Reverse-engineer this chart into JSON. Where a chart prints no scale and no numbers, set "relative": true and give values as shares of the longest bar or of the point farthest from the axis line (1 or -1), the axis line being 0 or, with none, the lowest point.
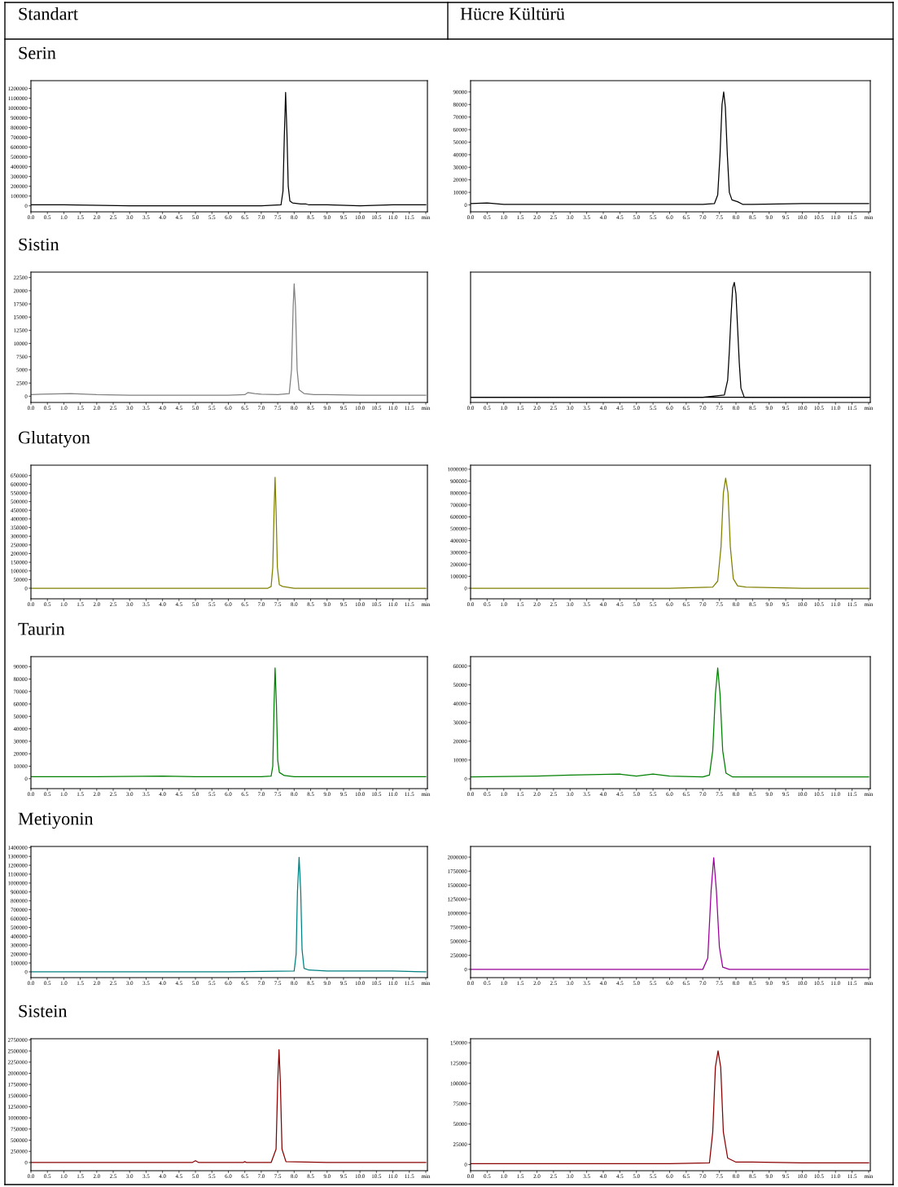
{
  "chart_data": [
    {
      "type": "line",
      "title": "Serin",
      "annotations": [
        "Standart"
      ],
      "xlim": [
        0,
        12.05
      ],
      "ylim": [
        -61000,
        1280000
      ],
      "xticks": [
        {
          "value": 0,
          "label": "0.0"
        },
        0.5,
        {
          "value": 1,
          "label": "1.0"
        },
        1.5,
        {
          "value": 2,
          "label": "2.0"
        },
        2.5,
        {
          "value": 3,
          "label": "3.0"
        },
        3.5,
        {
          "value": 4,
          "label": "4.0"
        },
        4.5,
        {
          "value": 5,
          "label": "5.0"
        },
        5.5,
        {
          "value": 6,
          "label": "6.0"
        },
        6.5,
        {
          "value": 7,
          "label": "7.0"
        },
        7.5,
        {
          "value": 8,
          "label": "8.0"
        },
        8.5,
        {
          "value": 9,
          "label": "9.0"
        },
        9.5,
        {
          "value": 10,
          "label": "10.0"
        },
        10.5,
        {
          "value": 11,
          "label": "11.0"
        },
        11.5,
        {
          "value": 12,
          "label": "min"
        }
      ],
      "yticks": [
        0,
        100000,
        200000,
        300000,
        400000,
        500000,
        600000,
        700000,
        800000,
        900000,
        1000000,
        1100000,
        1200000
      ],
      "grid": false,
      "series": [
        {
          "color": "#000000",
          "x": [
            0,
            0.25,
            1,
            3,
            5,
            7,
            7.6,
            7.66,
            7.7,
            7.74,
            7.78,
            7.82,
            7.87,
            7.95,
            8.2,
            8.35,
            8.45,
            9,
            10,
            11,
            12
          ],
          "values": [
            10000,
            10000,
            10000,
            0,
            0,
            0,
            10000,
            150000,
            700000,
            1160000,
            750000,
            200000,
            50000,
            30000,
            20000,
            20000,
            10000,
            10000,
            0,
            10000,
            10000
          ]
        }
      ]
    },
    {
      "type": "line",
      "annotations": [
        "Hücre Kültürü"
      ],
      "xlim": [
        0,
        12.05
      ],
      "ylim": [
        -5500,
        99000
      ],
      "xticks": [
        {
          "value": 0,
          "label": "0.0"
        },
        0.5,
        {
          "value": 1,
          "label": "1.0"
        },
        1.5,
        {
          "value": 2,
          "label": "2.0"
        },
        2.5,
        {
          "value": 3,
          "label": "3.0"
        },
        3.5,
        {
          "value": 4,
          "label": "4.0"
        },
        4.5,
        {
          "value": 5,
          "label": "5.0"
        },
        5.5,
        {
          "value": 6,
          "label": "6.0"
        },
        6.5,
        {
          "value": 7,
          "label": "7.0"
        },
        7.5,
        {
          "value": 8,
          "label": "8.0"
        },
        8.5,
        {
          "value": 9,
          "label": "9.0"
        },
        9.5,
        {
          "value": 10,
          "label": "10.0"
        },
        10.5,
        {
          "value": 11,
          "label": "11.0"
        },
        11.5,
        {
          "value": 12,
          "label": "min"
        }
      ],
      "yticks": [
        0,
        10000,
        20000,
        30000,
        40000,
        50000,
        60000,
        70000,
        80000,
        90000
      ],
      "grid": false,
      "series": [
        {
          "color": "#000000",
          "x": [
            0,
            0.5,
            1,
            3,
            5,
            7,
            7.35,
            7.45,
            7.52,
            7.58,
            7.63,
            7.68,
            7.74,
            7.8,
            7.88,
            8.05,
            8.2,
            8.5,
            10,
            10.5,
            12
          ],
          "values": [
            1000,
            1500,
            500,
            500,
            500,
            500,
            1000,
            8000,
            40000,
            80000,
            90000,
            78000,
            40000,
            10000,
            4000,
            2500,
            500,
            500,
            1000,
            1000,
            1000
          ]
        }
      ]
    },
    {
      "type": "line",
      "title": "Sistin",
      "xlim": [
        0,
        12.05
      ],
      "ylim": [
        -1180,
        23530
      ],
      "xticks": [
        {
          "value": 0,
          "label": "0.0"
        },
        0.5,
        {
          "value": 1,
          "label": "1.0"
        },
        1.5,
        {
          "value": 2,
          "label": "2.0"
        },
        2.5,
        {
          "value": 3,
          "label": "3.0"
        },
        3.5,
        {
          "value": 4,
          "label": "4.0"
        },
        4.5,
        {
          "value": 5,
          "label": "5.0"
        },
        5.5,
        {
          "value": 6,
          "label": "6.0"
        },
        6.5,
        {
          "value": 7,
          "label": "7.0"
        },
        7.5,
        {
          "value": 8,
          "label": "8.0"
        },
        8.5,
        {
          "value": 9,
          "label": "9.0"
        },
        9.5,
        {
          "value": 10,
          "label": "10.0"
        },
        10.5,
        {
          "value": 11,
          "label": "11.0"
        },
        11.5,
        {
          "value": 12,
          "label": "min"
        }
      ],
      "yticks": [
        0,
        2500,
        5000,
        7500,
        10000,
        12500,
        15000,
        17500,
        20000,
        22500
      ],
      "grid": false,
      "series": [
        {
          "color": "#808080",
          "x": [
            0,
            0.3,
            1.2,
            2,
            3,
            4,
            5,
            6,
            6.5,
            6.6,
            6.8,
            7,
            7.5,
            7.85,
            7.92,
            7.97,
            8.0,
            8.04,
            8.09,
            8.15,
            8.3,
            8.6,
            9,
            10,
            11,
            12
          ],
          "values": [
            300,
            400,
            500,
            300,
            200,
            200,
            200,
            200,
            300,
            700,
            500,
            400,
            300,
            500,
            5000,
            17000,
            21300,
            17000,
            5000,
            1200,
            500,
            300,
            300,
            200,
            200,
            200
          ]
        }
      ]
    },
    {
      "type": "line",
      "relative": true,
      "xlim": [
        0,
        12.05
      ],
      "xticks": [
        {
          "value": 0,
          "label": "0.0"
        },
        0.5,
        {
          "value": 1,
          "label": "1.0"
        },
        1.5,
        {
          "value": 2,
          "label": "2.0"
        },
        2.5,
        {
          "value": 3,
          "label": "3.0"
        },
        3.5,
        {
          "value": 4,
          "label": "4.0"
        },
        4.5,
        {
          "value": 5,
          "label": "5.0"
        },
        5.5,
        {
          "value": 6,
          "label": "6.0"
        },
        6.5,
        {
          "value": 7,
          "label": "7.0"
        },
        7.5,
        {
          "value": 8,
          "label": "8.0"
        },
        8.5,
        {
          "value": 9,
          "label": "9.0"
        },
        9.5,
        {
          "value": 10,
          "label": "10.0"
        },
        10.5,
        {
          "value": 11,
          "label": "11.0"
        },
        11.5,
        {
          "value": 12,
          "label": "min"
        }
      ],
      "grid": false,
      "series": [
        {
          "color": "#000000",
          "x": [
            0,
            3,
            7,
            7.65,
            7.75,
            7.8,
            7.85,
            7.9,
            7.95,
            8.0,
            8.05,
            8.1,
            8.15,
            8.25,
            12
          ],
          "values": [
            0,
            0,
            0,
            0.02,
            0.15,
            0.4,
            0.7,
            0.95,
            1,
            0.9,
            0.6,
            0.3,
            0.08,
            0,
            0
          ]
        }
      ]
    },
    {
      "type": "line",
      "title": "Glutatyon",
      "xlim": [
        0,
        12.05
      ],
      "ylim": [
        -61000,
        710000
      ],
      "xticks": [
        {
          "value": 0,
          "label": "0.0"
        },
        0.5,
        {
          "value": 1,
          "label": "1.0"
        },
        1.5,
        {
          "value": 2,
          "label": "2.0"
        },
        2.5,
        {
          "value": 3,
          "label": "3.0"
        },
        3.5,
        {
          "value": 4,
          "label": "4.0"
        },
        4.5,
        {
          "value": 5,
          "label": "5.0"
        },
        5.5,
        {
          "value": 6,
          "label": "6.0"
        },
        6.5,
        {
          "value": 7,
          "label": "7.0"
        },
        7.5,
        {
          "value": 8,
          "label": "8.0"
        },
        8.5,
        {
          "value": 9,
          "label": "9.0"
        },
        9.5,
        {
          "value": 10,
          "label": "10.0"
        },
        10.5,
        {
          "value": 11,
          "label": "11.0"
        },
        11.5,
        {
          "value": 12,
          "label": "min"
        }
      ],
      "yticks": [
        0,
        50000,
        100000,
        150000,
        200000,
        250000,
        300000,
        350000,
        400000,
        450000,
        500000,
        550000,
        600000,
        650000
      ],
      "grid": false,
      "series": [
        {
          "color": "#808000",
          "x": [
            0,
            3,
            6,
            7.2,
            7.3,
            7.35,
            7.39,
            7.42,
            7.45,
            7.49,
            7.55,
            7.65,
            8,
            10,
            12
          ],
          "values": [
            0,
            0,
            0,
            0,
            10000,
            120000,
            450000,
            640000,
            450000,
            120000,
            20000,
            10000,
            0,
            0,
            0
          ]
        }
      ]
    },
    {
      "type": "line",
      "xlim": [
        0,
        12.05
      ],
      "ylim": [
        -89000,
        1034000
      ],
      "xticks": [
        {
          "value": 0,
          "label": "0.0"
        },
        0.5,
        {
          "value": 1,
          "label": "1.0"
        },
        1.5,
        {
          "value": 2,
          "label": "2.0"
        },
        2.5,
        {
          "value": 3,
          "label": "3.0"
        },
        3.5,
        {
          "value": 4,
          "label": "4.0"
        },
        4.5,
        {
          "value": 5,
          "label": "5.0"
        },
        5.5,
        {
          "value": 6,
          "label": "6.0"
        },
        6.5,
        {
          "value": 7,
          "label": "7.0"
        },
        7.5,
        {
          "value": 8,
          "label": "8.0"
        },
        8.5,
        {
          "value": 9,
          "label": "9.0"
        },
        9.5,
        {
          "value": 10,
          "label": "10.0"
        },
        10.5,
        {
          "value": 11,
          "label": "11.0"
        },
        11.5,
        {
          "value": 12,
          "label": "min"
        }
      ],
      "yticks": [
        0,
        100000,
        200000,
        300000,
        400000,
        500000,
        600000,
        700000,
        800000,
        900000,
        1000000
      ],
      "grid": false,
      "series": [
        {
          "color": "#808000",
          "x": [
            0,
            3,
            6,
            7.3,
            7.45,
            7.55,
            7.62,
            7.69,
            7.76,
            7.83,
            7.92,
            8.05,
            8.3,
            10,
            12
          ],
          "values": [
            0,
            0,
            0,
            10000,
            60000,
            350000,
            800000,
            925000,
            800000,
            350000,
            80000,
            20000,
            10000,
            0,
            0
          ]
        }
      ]
    },
    {
      "type": "line",
      "title": "Taurin",
      "xlim": [
        0,
        12.05
      ],
      "ylim": [
        -8000,
        98000
      ],
      "xticks": [
        {
          "value": 0,
          "label": "0.0"
        },
        0.5,
        {
          "value": 1,
          "label": "1.0"
        },
        1.5,
        {
          "value": 2,
          "label": "2.0"
        },
        2.5,
        {
          "value": 3,
          "label": "3.0"
        },
        3.5,
        {
          "value": 4,
          "label": "4.0"
        },
        4.5,
        {
          "value": 5,
          "label": "5.0"
        },
        5.5,
        {
          "value": 6,
          "label": "6.0"
        },
        6.5,
        {
          "value": 7,
          "label": "7.0"
        },
        7.5,
        {
          "value": 8,
          "label": "8.0"
        },
        8.5,
        {
          "value": 9,
          "label": "9.0"
        },
        9.5,
        {
          "value": 10,
          "label": "10.0"
        },
        10.5,
        {
          "value": 11,
          "label": "11.0"
        },
        11.5,
        {
          "value": 12,
          "label": "min"
        }
      ],
      "yticks": [
        0,
        10000,
        20000,
        30000,
        40000,
        50000,
        60000,
        70000,
        80000,
        90000
      ],
      "grid": false,
      "series": [
        {
          "color": "#008000",
          "x": [
            0,
            2,
            4,
            5,
            7,
            7.3,
            7.35,
            7.39,
            7.42,
            7.46,
            7.5,
            7.55,
            7.7,
            8,
            10,
            12
          ],
          "values": [
            1500,
            1500,
            2000,
            1500,
            1500,
            2000,
            10000,
            60000,
            89000,
            60000,
            15000,
            5000,
            2500,
            1500,
            1500,
            1500
          ]
        }
      ]
    },
    {
      "type": "line",
      "xlim": [
        0,
        12.05
      ],
      "ylim": [
        -5200,
        65000
      ],
      "xticks": [
        {
          "value": 0,
          "label": "0.0"
        },
        0.5,
        {
          "value": 1,
          "label": "1.0"
        },
        1.5,
        {
          "value": 2,
          "label": "2.0"
        },
        2.5,
        {
          "value": 3,
          "label": "3.0"
        },
        3.5,
        {
          "value": 4,
          "label": "4.0"
        },
        4.5,
        {
          "value": 5,
          "label": "5.0"
        },
        5.5,
        {
          "value": 6,
          "label": "6.0"
        },
        6.5,
        {
          "value": 7,
          "label": "7.0"
        },
        7.5,
        {
          "value": 8,
          "label": "8.0"
        },
        8.5,
        {
          "value": 9,
          "label": "9.0"
        },
        9.5,
        {
          "value": 10,
          "label": "10.0"
        },
        10.5,
        {
          "value": 11,
          "label": "11.0"
        },
        11.5,
        {
          "value": 12,
          "label": "min"
        }
      ],
      "yticks": [
        0,
        10000,
        20000,
        30000,
        40000,
        50000,
        60000
      ],
      "grid": false,
      "series": [
        {
          "color": "#008000",
          "x": [
            0,
            2,
            3,
            4.5,
            5,
            5.5,
            6,
            7,
            7.2,
            7.3,
            7.38,
            7.45,
            7.52,
            7.6,
            7.7,
            7.9,
            9,
            12
          ],
          "values": [
            1000,
            1500,
            2000,
            2500,
            1500,
            2500,
            1500,
            1000,
            2000,
            15000,
            45000,
            59000,
            45000,
            15000,
            3000,
            1000,
            1000,
            1000
          ]
        }
      ]
    },
    {
      "type": "line",
      "title": "Metiyonin",
      "xlim": [
        0,
        12.05
      ],
      "ylim": [
        -65000,
        1412000
      ],
      "xticks": [
        {
          "value": 0,
          "label": "0.0"
        },
        0.5,
        {
          "value": 1,
          "label": "1.0"
        },
        1.5,
        {
          "value": 2,
          "label": "2.0"
        },
        2.5,
        {
          "value": 3,
          "label": "3.0"
        },
        3.5,
        {
          "value": 4,
          "label": "4.0"
        },
        4.5,
        {
          "value": 5,
          "label": "5.0"
        },
        5.5,
        {
          "value": 6,
          "label": "6.0"
        },
        6.5,
        {
          "value": 7,
          "label": "7.0"
        },
        7.5,
        {
          "value": 8,
          "label": "8.0"
        },
        8.5,
        {
          "value": 9,
          "label": "9.0"
        },
        9.5,
        {
          "value": 10,
          "label": "10.0"
        },
        10.5,
        {
          "value": 11,
          "label": "11.0"
        },
        11.5,
        {
          "value": 12,
          "label": "min"
        }
      ],
      "yticks": [
        0,
        100000,
        200000,
        300000,
        400000,
        500000,
        600000,
        700000,
        800000,
        900000,
        1000000,
        1100000,
        1200000,
        1300000,
        1400000
      ],
      "grid": false,
      "series": [
        {
          "color": "#008080",
          "x": [
            0,
            3,
            6,
            8.0,
            8.06,
            8.1,
            8.15,
            8.2,
            8.24,
            8.3,
            8.45,
            9,
            11,
            12
          ],
          "values": [
            0,
            0,
            0,
            10000,
            200000,
            900000,
            1290000,
            900000,
            250000,
            40000,
            20000,
            10000,
            10000,
            0
          ]
        }
      ]
    },
    {
      "type": "line",
      "xlim": [
        0,
        12.05
      ],
      "ylim": [
        -147000,
        2190000
      ],
      "xticks": [
        {
          "value": 0,
          "label": "0.0"
        },
        0.5,
        {
          "value": 1,
          "label": "1.0"
        },
        1.5,
        {
          "value": 2,
          "label": "2.0"
        },
        2.5,
        {
          "value": 3,
          "label": "3.0"
        },
        3.5,
        {
          "value": 4,
          "label": "4.0"
        },
        4.5,
        {
          "value": 5,
          "label": "5.0"
        },
        5.5,
        {
          "value": 6,
          "label": "6.0"
        },
        6.5,
        {
          "value": 7,
          "label": "7.0"
        },
        7.5,
        {
          "value": 8,
          "label": "8.0"
        },
        8.5,
        {
          "value": 9,
          "label": "9.0"
        },
        9.5,
        {
          "value": 10,
          "label": "10.0"
        },
        10.5,
        {
          "value": 11,
          "label": "11.0"
        },
        11.5,
        {
          "value": 12,
          "label": "min"
        }
      ],
      "yticks": [
        0,
        250000,
        500000,
        750000,
        1000000,
        1250000,
        1500000,
        1750000,
        2000000
      ],
      "grid": false,
      "series": [
        {
          "color": "#990099",
          "x": [
            0,
            3,
            6,
            7.0,
            7.15,
            7.25,
            7.33,
            7.41,
            7.5,
            7.6,
            7.8,
            10,
            12
          ],
          "values": [
            0,
            0,
            0,
            0,
            200000,
            1400000,
            1990000,
            1400000,
            400000,
            40000,
            0,
            0,
            0
          ]
        }
      ]
    },
    {
      "type": "line",
      "title": "Sistein",
      "xlim": [
        0,
        12.05
      ],
      "ylim": [
        -184000,
        2775000
      ],
      "xticks": [
        {
          "value": 0,
          "label": "0.0"
        },
        0.5,
        {
          "value": 1,
          "label": "1.0"
        },
        1.5,
        {
          "value": 2,
          "label": "2.0"
        },
        2.5,
        {
          "value": 3,
          "label": "3.0"
        },
        3.5,
        {
          "value": 4,
          "label": "4.0"
        },
        4.5,
        {
          "value": 5,
          "label": "5.0"
        },
        5.5,
        {
          "value": 6,
          "label": "6.0"
        },
        6.5,
        {
          "value": 7,
          "label": "7.0"
        },
        7.5,
        {
          "value": 8,
          "label": "8.0"
        },
        8.5,
        {
          "value": 9,
          "label": "9.0"
        },
        9.5,
        {
          "value": 10,
          "label": "10.0"
        },
        10.5,
        {
          "value": 11,
          "label": "11.0"
        },
        11.5,
        {
          "value": 12,
          "label": "min"
        }
      ],
      "yticks": [
        0,
        250000,
        500000,
        750000,
        1000000,
        1250000,
        1500000,
        1750000,
        2000000,
        2250000,
        2500000,
        2750000
      ],
      "grid": false,
      "series": [
        {
          "color": "#8b0000",
          "x": [
            0,
            3,
            4.9,
            5.0,
            5.1,
            6,
            6.45,
            6.5,
            6.55,
            7.3,
            7.45,
            7.5,
            7.54,
            7.58,
            7.63,
            7.75,
            9,
            12
          ],
          "values": [
            0,
            0,
            0,
            40000,
            0,
            0,
            0,
            20000,
            0,
            0,
            300000,
            1800000,
            2530000,
            1800000,
            300000,
            20000,
            0,
            0
          ]
        }
      ]
    },
    {
      "type": "line",
      "xlim": [
        0,
        12.05
      ],
      "ylim": [
        -7550,
        155000
      ],
      "xticks": [
        {
          "value": 0,
          "label": "0.0"
        },
        0.5,
        {
          "value": 1,
          "label": "1.0"
        },
        1.5,
        {
          "value": 2,
          "label": "2.0"
        },
        2.5,
        {
          "value": 3,
          "label": "3.0"
        },
        3.5,
        {
          "value": 4,
          "label": "4.0"
        },
        4.5,
        {
          "value": 5,
          "label": "5.0"
        },
        5.5,
        {
          "value": 6,
          "label": "6.0"
        },
        6.5,
        {
          "value": 7,
          "label": "7.0"
        },
        7.5,
        {
          "value": 8,
          "label": "8.0"
        },
        8.5,
        {
          "value": 9,
          "label": "9.0"
        },
        9.5,
        {
          "value": 10,
          "label": "10.0"
        },
        10.5,
        {
          "value": 11,
          "label": "11.0"
        },
        11.5,
        {
          "value": 12,
          "label": "min"
        }
      ],
      "yticks": [
        0,
        25000,
        50000,
        75000,
        100000,
        125000,
        150000
      ],
      "grid": false,
      "series": [
        {
          "color": "#8b0000",
          "x": [
            0,
            3,
            6,
            7.2,
            7.3,
            7.38,
            7.46,
            7.54,
            7.62,
            7.75,
            8.0,
            8.5,
            10,
            12
          ],
          "values": [
            1000,
            1000,
            1000,
            2000,
            40000,
            120000,
            140000,
            120000,
            40000,
            8000,
            3000,
            3000,
            2000,
            2000
          ]
        }
      ]
    }
  ]
}
